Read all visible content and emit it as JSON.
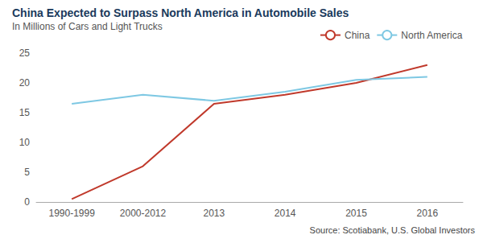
{
  "chart_data": {
    "type": "line",
    "title": "China Expected to Surpass North America in Automobile Sales",
    "subtitle": "In Millions of Cars and Light Trucks",
    "annotations": [
      "Source: Scotiabank, U.S. Global Investors"
    ],
    "categories": [
      "1990-1999",
      "2000-2012",
      "2013",
      "2014",
      "2015",
      "2016"
    ],
    "series": [
      {
        "name": "China",
        "color": "#c0392b",
        "values": [
          0.5,
          6.0,
          16.5,
          18.0,
          20.0,
          23.0
        ]
      },
      {
        "name": "North America",
        "color": "#7ec8e3",
        "values": [
          16.5,
          18.0,
          17.0,
          18.5,
          20.5,
          21.0
        ]
      }
    ],
    "ylim": [
      0,
      25
    ],
    "yticks": [
      0,
      5,
      10,
      15,
      20,
      25
    ],
    "grid": false,
    "legend": "top-right"
  }
}
